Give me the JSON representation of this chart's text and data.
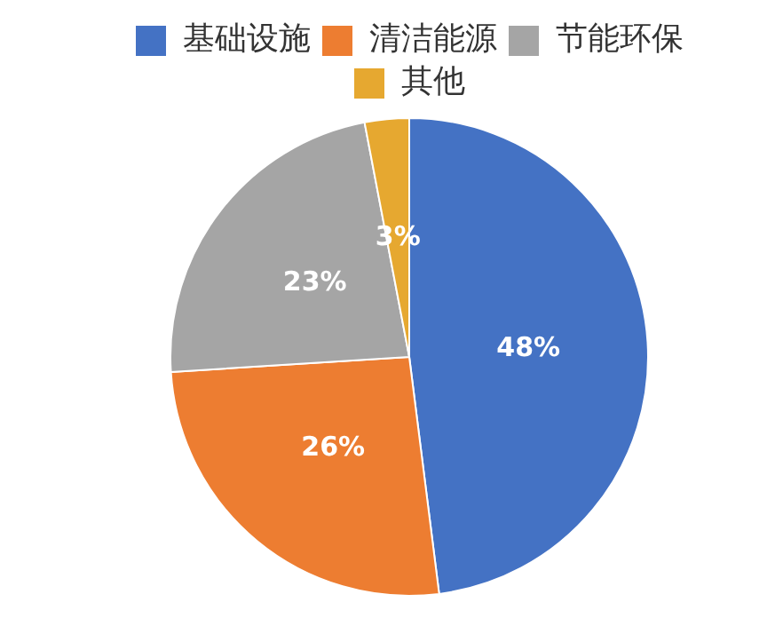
{
  "chart_data": {
    "type": "pie",
    "categories": [
      "基础设施",
      "清洁能源",
      "节能环保",
      "其他"
    ],
    "values": [
      48,
      26,
      23,
      3
    ],
    "colors": [
      "#4472c4",
      "#ed7d31",
      "#a5a5a5",
      "#e6a830"
    ],
    "value_labels": [
      "48%",
      "26%",
      "23%",
      "3%"
    ],
    "legend": "top"
  }
}
